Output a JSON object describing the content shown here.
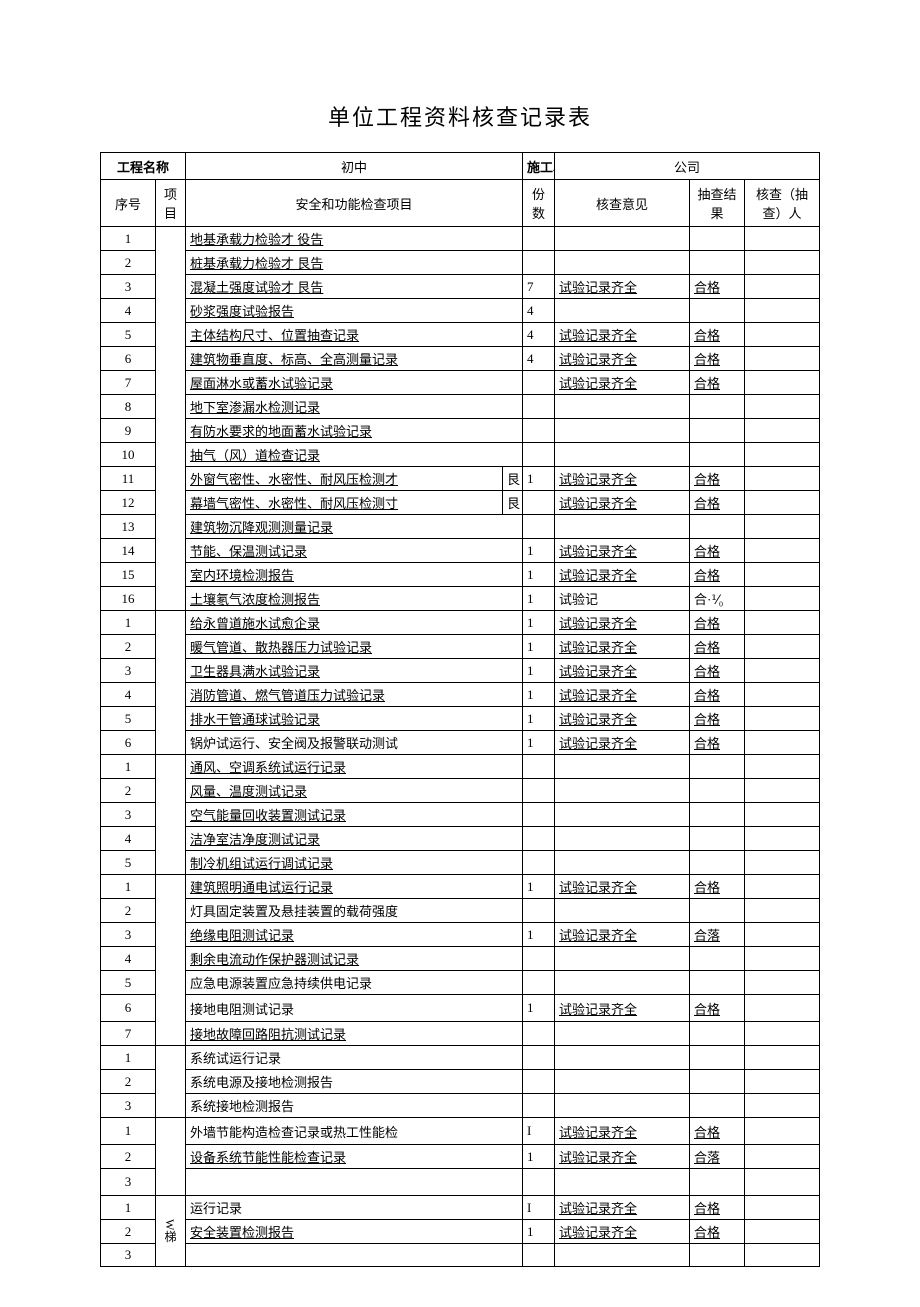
{
  "title": "单位工程资料核查记录表",
  "header": {
    "projectName": "工程名称",
    "projectNameVal": "初中",
    "constructUnit": "施工单位",
    "constructUnitVal": "公司",
    "seq": "序号",
    "proj": "项目",
    "item": "安全和功能检查项目",
    "count": "份数",
    "opinion": "核查意见",
    "result": "抽查结果",
    "checker": "核查（抽查）人"
  },
  "rows": [
    {
      "seq": "1",
      "item": "地基承载力检验才  役告",
      "count": "",
      "opinion": "",
      "result": ""
    },
    {
      "seq": "2",
      "item": "桩基承载力检验才  艮告",
      "count": "",
      "opinion": "",
      "result": ""
    },
    {
      "seq": "3",
      "item": "混凝土强度试验才  艮告",
      "count": "7",
      "opinion": "试验记录齐全",
      "result": "合格"
    },
    {
      "seq": "4",
      "item": "砂浆强度试验报告",
      "count": "4",
      "opinion": "",
      "result": ""
    },
    {
      "seq": "5",
      "item": "主体结构尺寸、位置抽查记录",
      "count": "4",
      "opinion": "试验记录齐全",
      "result": "合格"
    },
    {
      "seq": "6",
      "item": "建筑物垂直度、标高、全高测量记录",
      "count": "4",
      "opinion": "试验记录齐全",
      "result": "合格"
    },
    {
      "seq": "7",
      "item": "屋面淋水或蓄水试验记录",
      "count": "",
      "opinion": "试验记录齐全",
      "result": "合格"
    },
    {
      "seq": "8",
      "item": "地下室渗漏水检测记录",
      "count": "",
      "opinion": "",
      "result": ""
    },
    {
      "seq": "9",
      "item": "有防水要求的地面蓄水试验记录",
      "count": "",
      "opinion": "",
      "result": ""
    },
    {
      "seq": "10",
      "item": "抽气（风）道检查记录",
      "count": "",
      "opinion": "",
      "result": ""
    },
    {
      "seq": "11",
      "item": "外窗气密性、水密性、耐风压检测才",
      "count": "1",
      "opinion": "试验记录齐全",
      "result": "合格",
      "extra": "艮"
    },
    {
      "seq": "12",
      "item": "幕墙气密性、水密性、耐风压检测寸",
      "count": "",
      "opinion": "试验记录齐全",
      "result": "合格",
      "extra": "艮"
    },
    {
      "seq": "13",
      "item": "建筑物沉降观测测量记录",
      "count": "",
      "opinion": "",
      "result": ""
    },
    {
      "seq": "14",
      "item": "节能、保温测试记录",
      "count": "1",
      "opinion": "试验记录齐全",
      "result": "合格"
    },
    {
      "seq": "15",
      "item": "室内环境检测报告",
      "count": "1",
      "opinion": "试验记录齐全",
      "result": "合格"
    },
    {
      "seq": "16",
      "item": "土壤氡气浓度检测报告",
      "count": "1",
      "opinion": "试验记",
      "result": "合·⅟₀",
      "nou_op": true,
      "nou_r": true
    },
    {
      "seq": "1",
      "item": "给永曾道施水试愈企录",
      "count": "1",
      "opinion": "试验记录齐全",
      "result": "合格"
    },
    {
      "seq": "2",
      "item": "暖气管道、散热器压力试验记录",
      "count": "1",
      "opinion": "试验记录齐全",
      "result": "合格"
    },
    {
      "seq": "3",
      "item": "卫生器具满水试验记录",
      "count": "1",
      "opinion": "试验记录齐全",
      "result": "合格"
    },
    {
      "seq": "4",
      "item": "消防管道、燃气管道压力试验记录",
      "count": "1",
      "opinion": "试验记录齐全",
      "result": "合格"
    },
    {
      "seq": "5",
      "item": "排水干管通球试验记录",
      "count": "1",
      "opinion": "试验记录齐全",
      "result": "合格"
    },
    {
      "seq": "6",
      "item": "锅炉试运行、安全阀及报警联动测试",
      "count": "1",
      "opinion": "试验记录齐全",
      "result": "合格",
      "nou": true
    },
    {
      "seq": "1",
      "item": "通风、空调系统试运行记录",
      "count": "",
      "opinion": "",
      "result": ""
    },
    {
      "seq": "2",
      "item": "风量、温度测试记录",
      "count": "",
      "opinion": "",
      "result": ""
    },
    {
      "seq": "3",
      "item": "空气能量回收装置测试记录",
      "count": "",
      "opinion": "",
      "result": ""
    },
    {
      "seq": "4",
      "item": "洁净室洁净度测试记录",
      "count": "",
      "opinion": "",
      "result": ""
    },
    {
      "seq": "5",
      "item": "制冷机组试运行调试记录",
      "count": "",
      "opinion": "",
      "result": ""
    },
    {
      "seq": "1",
      "item": "建筑照明通电试运行记录",
      "count": "1",
      "opinion": "试验记录齐全",
      "result": "合格"
    },
    {
      "seq": "2",
      "item": "灯具固定装置及悬挂装置的载荷强度",
      "count": "",
      "opinion": "",
      "result": "",
      "nou": true
    },
    {
      "seq": "3",
      "item": "绝缘电阻测试记录",
      "count": "1",
      "opinion": "试验记录齐全",
      "result": "合落"
    },
    {
      "seq": "4",
      "item": "剩余电流动作保护器测试记录",
      "count": "",
      "opinion": "",
      "result": ""
    },
    {
      "seq": "5",
      "item": "应急电源装置应急持续供电记录",
      "count": "",
      "opinion": "",
      "result": "",
      "nou": true
    },
    {
      "seq": "6",
      "item": "接地电阻测试记录",
      "count": "1",
      "opinion": "试验记录齐全",
      "result": "合格",
      "tall": true,
      "nou": true
    },
    {
      "seq": "7",
      "item": "接地故障回路阻抗测试记录",
      "count": "",
      "opinion": "",
      "result": ""
    },
    {
      "seq": "1",
      "item": "系统试运行记录",
      "count": "",
      "opinion": "",
      "result": "",
      "nou": true
    },
    {
      "seq": "2",
      "item": "系统电源及接地检测报告",
      "count": "",
      "opinion": "",
      "result": "",
      "nou": true
    },
    {
      "seq": "3",
      "item": "系统接地检测报告",
      "count": "",
      "opinion": "",
      "result": "",
      "nou": true
    },
    {
      "seq": "1",
      "item": "外墙节能构造检查记录或热工性能检",
      "count": "I",
      "opinion": "试验记录齐全",
      "result": "合格",
      "nou": true,
      "tall": true
    },
    {
      "seq": "2",
      "item": "设备系统节能性能检查记录",
      "count": "1",
      "opinion": "试验记录齐全",
      "result": "合落"
    },
    {
      "seq": "3",
      "item": "",
      "count": "",
      "opinion": "",
      "result": "",
      "empty": true,
      "tall": true
    },
    {
      "seq": "1",
      "item": "运行记录",
      "count": "I",
      "opinion": "试验记录齐全",
      "result": "合格",
      "nou": true,
      "proj": "W梯",
      "projspan": 3
    },
    {
      "seq": "2",
      "item": "安全装置检测报告",
      "count": "1",
      "opinion": "试验记录齐全",
      "result": "合格"
    },
    {
      "seq": "3",
      "item": "",
      "count": "",
      "opinion": "",
      "result": "",
      "empty": true
    }
  ],
  "groups": [
    {
      "start": 0,
      "span": 16
    },
    {
      "start": 16,
      "span": 6
    },
    {
      "start": 22,
      "span": 5
    },
    {
      "start": 27,
      "span": 7
    },
    {
      "start": 34,
      "span": 3
    },
    {
      "start": 37,
      "span": 3
    }
  ]
}
